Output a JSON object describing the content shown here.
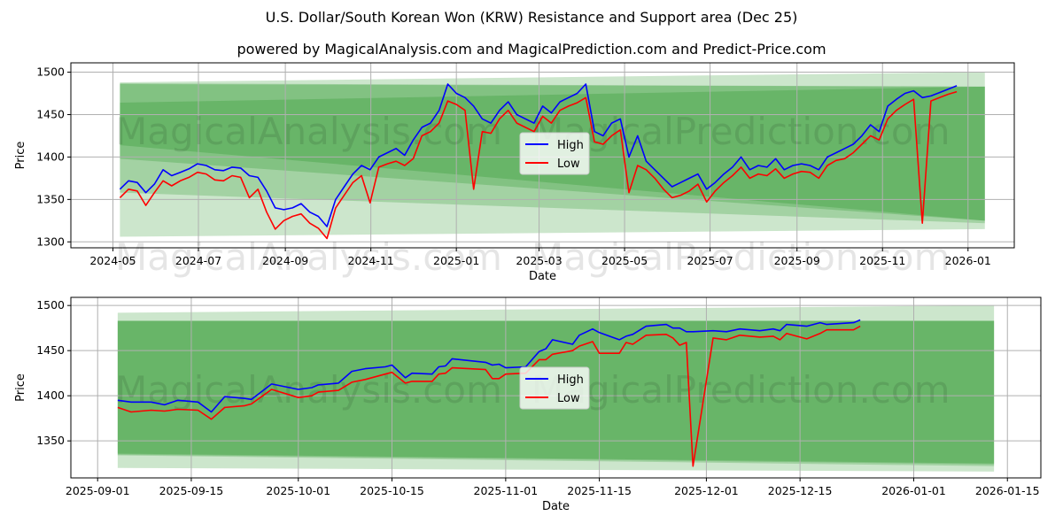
{
  "title": "U.S. Dollar/South Korean Won (KRW) Resistance and Support area (Dec 25)",
  "subtitle": "powered by MagicalAnalysis.com and MagicalPrediction.com and Predict-Price.com",
  "watermarks": [
    "MagicalAnalysis.com",
    "MagicalPrediction.com"
  ],
  "colors": {
    "high": "#0000ff",
    "low": "#ff0000",
    "band": "#008000"
  },
  "chart_data": [
    {
      "type": "line",
      "xlabel": "Date",
      "ylabel": "Price",
      "ylim": [
        1293,
        1511
      ],
      "xlim": [
        "2024-04-01",
        "2026-02-03"
      ],
      "yticks": [
        1300,
        1350,
        1400,
        1450,
        1500
      ],
      "xticks": [
        "2024-05",
        "2024-07",
        "2024-09",
        "2024-11",
        "2025-01",
        "2025-03",
        "2025-05",
        "2025-07",
        "2025-09",
        "2025-11",
        "2026-01"
      ],
      "legend": {
        "position": "center",
        "entries": [
          "High",
          "Low"
        ]
      },
      "x_start": "2024-05-06",
      "x_end": "2025-12-24",
      "series": [
        {
          "name": "High",
          "values": [
            1362,
            1372,
            1370,
            1358,
            1368,
            1385,
            1378,
            1382,
            1386,
            1392,
            1390,
            1385,
            1384,
            1388,
            1387,
            1378,
            1376,
            1360,
            1340,
            1338,
            1340,
            1345,
            1335,
            1330,
            1318,
            1350,
            1365,
            1380,
            1390,
            1385,
            1400,
            1405,
            1410,
            1402,
            1420,
            1435,
            1440,
            1455,
            1486,
            1475,
            1470,
            1460,
            1445,
            1440,
            1455,
            1465,
            1450,
            1445,
            1440,
            1460,
            1452,
            1465,
            1470,
            1475,
            1486,
            1430,
            1425,
            1440,
            1445,
            1400,
            1425,
            1395,
            1385,
            1375,
            1365,
            1370,
            1375,
            1380,
            1362,
            1370,
            1380,
            1388,
            1400,
            1385,
            1390,
            1388,
            1398,
            1385,
            1390,
            1392,
            1390,
            1385,
            1400,
            1405,
            1410,
            1415,
            1425,
            1438,
            1430,
            1460,
            1468,
            1475,
            1478,
            1470,
            1472,
            1476,
            1480,
            1484
          ]
        },
        {
          "name": "Low",
          "values": [
            1352,
            1362,
            1360,
            1343,
            1358,
            1372,
            1366,
            1372,
            1376,
            1382,
            1380,
            1373,
            1372,
            1378,
            1376,
            1352,
            1362,
            1335,
            1315,
            1325,
            1330,
            1333,
            1322,
            1316,
            1304,
            1340,
            1355,
            1370,
            1378,
            1346,
            1388,
            1392,
            1395,
            1390,
            1398,
            1425,
            1430,
            1440,
            1466,
            1462,
            1455,
            1362,
            1430,
            1428,
            1445,
            1455,
            1440,
            1435,
            1430,
            1448,
            1440,
            1455,
            1460,
            1464,
            1470,
            1418,
            1415,
            1425,
            1432,
            1358,
            1390,
            1385,
            1375,
            1362,
            1352,
            1355,
            1360,
            1368,
            1347,
            1360,
            1370,
            1378,
            1388,
            1375,
            1380,
            1378,
            1386,
            1375,
            1380,
            1383,
            1382,
            1375,
            1390,
            1396,
            1398,
            1405,
            1415,
            1425,
            1420,
            1445,
            1455,
            1462,
            1468,
            1322,
            1466,
            1470,
            1474,
            1477
          ]
        }
      ],
      "bands": [
        {
          "x_start": "2024-05-06",
          "x_end": "2026-01-13",
          "upper": [
            1488,
            1500
          ],
          "lower": [
            1306,
            1315
          ]
        },
        {
          "x_start": "2024-05-06",
          "x_end": "2026-01-13",
          "upper": [
            1487,
            1483
          ],
          "lower": [
            1358,
            1322
          ]
        },
        {
          "x_start": "2024-05-06",
          "x_end": "2026-01-13",
          "upper": [
            1486,
            1483
          ],
          "lower": [
            1398,
            1325
          ]
        },
        {
          "x_start": "2024-05-06",
          "x_end": "2026-01-13",
          "upper": [
            1464,
            1483
          ],
          "lower": [
            1414,
            1325
          ]
        }
      ]
    },
    {
      "type": "line",
      "xlabel": "Date",
      "ylabel": "Price",
      "ylim": [
        1309,
        1509
      ],
      "xlim": [
        "2025-08-28",
        "2026-01-20"
      ],
      "yticks": [
        1350,
        1400,
        1450,
        1500
      ],
      "xticks": [
        "2025-09-01",
        "2025-09-15",
        "2025-10-01",
        "2025-10-15",
        "2025-11-01",
        "2025-11-15",
        "2025-12-01",
        "2025-12-15",
        "2026-01-01",
        "2026-01-15"
      ],
      "legend": {
        "position": "center",
        "entries": [
          "High",
          "Low"
        ]
      },
      "dates": [
        "2025-09-04",
        "2025-09-06",
        "2025-09-09",
        "2025-09-11",
        "2025-09-13",
        "2025-09-16",
        "2025-09-18",
        "2025-09-20",
        "2025-09-23",
        "2025-09-24",
        "2025-09-27",
        "2025-10-01",
        "2025-10-03",
        "2025-10-04",
        "2025-10-07",
        "2025-10-09",
        "2025-10-11",
        "2025-10-14",
        "2025-10-15",
        "2025-10-17",
        "2025-10-18",
        "2025-10-21",
        "2025-10-22",
        "2025-10-23",
        "2025-10-24",
        "2025-10-29",
        "2025-10-30",
        "2025-10-31",
        "2025-11-01",
        "2025-11-04",
        "2025-11-06",
        "2025-11-07",
        "2025-11-08",
        "2025-11-11",
        "2025-11-12",
        "2025-11-14",
        "2025-11-15",
        "2025-11-18",
        "2025-11-19",
        "2025-11-20",
        "2025-11-22",
        "2025-11-25",
        "2025-11-26",
        "2025-11-27",
        "2025-11-28",
        "2025-11-29",
        "2025-12-02",
        "2025-12-04",
        "2025-12-06",
        "2025-12-09",
        "2025-12-11",
        "2025-12-12",
        "2025-12-13",
        "2025-12-16",
        "2025-12-18",
        "2025-12-19",
        "2025-12-23",
        "2025-12-24"
      ],
      "series": [
        {
          "name": "High",
          "values": [
            1395,
            1393,
            1393,
            1390,
            1395,
            1393,
            1382,
            1399,
            1397,
            1396,
            1413,
            1407,
            1409,
            1412,
            1414,
            1427,
            1430,
            1432,
            1434,
            1420,
            1425,
            1424,
            1432,
            1433,
            1441,
            1437,
            1434,
            1435,
            1431,
            1432,
            1449,
            1452,
            1462,
            1457,
            1467,
            1474,
            1470,
            1462,
            1466,
            1468,
            1477,
            1479,
            1475,
            1475,
            1471,
            1471,
            1472,
            1471,
            1474,
            1472,
            1474,
            1472,
            1479,
            1477,
            1481,
            1479,
            1481,
            1484
          ]
        },
        {
          "name": "Low",
          "values": [
            1387,
            1382,
            1384,
            1383,
            1385,
            1384,
            1374,
            1387,
            1389,
            1391,
            1407,
            1398,
            1400,
            1404,
            1406,
            1415,
            1418,
            1424,
            1426,
            1414,
            1416,
            1416,
            1424,
            1425,
            1431,
            1429,
            1419,
            1419,
            1424,
            1425,
            1440,
            1440,
            1446,
            1450,
            1455,
            1460,
            1447,
            1447,
            1459,
            1457,
            1467,
            1468,
            1464,
            1456,
            1459,
            1322,
            1464,
            1462,
            1467,
            1465,
            1466,
            1462,
            1469,
            1463,
            1469,
            1473,
            1473,
            1477
          ]
        }
      ],
      "bands": [
        {
          "x_start": "2025-09-04",
          "x_end": "2026-01-13",
          "upper": [
            1492,
            1500
          ],
          "lower": [
            1320,
            1316
          ]
        },
        {
          "x_start": "2025-09-04",
          "x_end": "2026-01-13",
          "upper": [
            1483,
            1483
          ],
          "lower": [
            1336,
            1325
          ]
        },
        {
          "x_start": "2025-09-04",
          "x_end": "2026-01-13",
          "upper": [
            1483,
            1483
          ],
          "lower": [
            1334,
            1322
          ]
        },
        {
          "x_start": "2025-09-04",
          "x_end": "2026-01-13",
          "upper": [
            1483,
            1483
          ],
          "lower": [
            1335,
            1324
          ]
        }
      ]
    }
  ]
}
